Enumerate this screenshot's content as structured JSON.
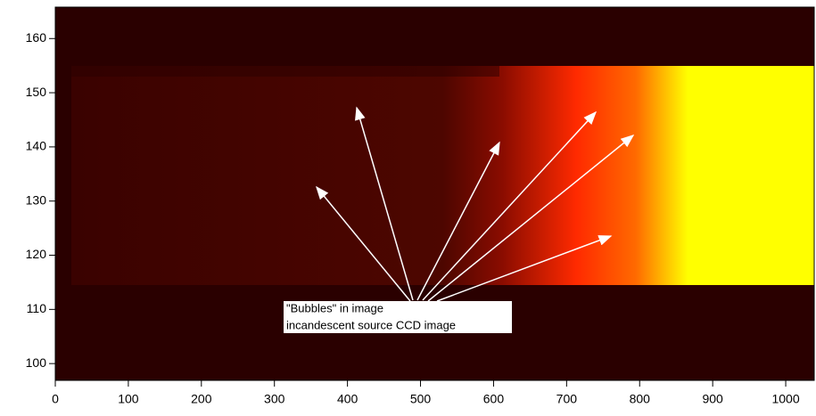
{
  "chart_data": {
    "type": "heatmap",
    "xlim": [
      0,
      1039
    ],
    "xticks": [
      0,
      100,
      200,
      300,
      400,
      500,
      600,
      700,
      800,
      900,
      1000
    ],
    "ylim": [
      96.9,
      165.8
    ],
    "yticks": [
      100,
      110,
      120,
      130,
      140,
      150,
      160
    ],
    "annotation": [
      "\"Bubbles\" in image",
      "incandescent source CCD image"
    ]
  }
}
